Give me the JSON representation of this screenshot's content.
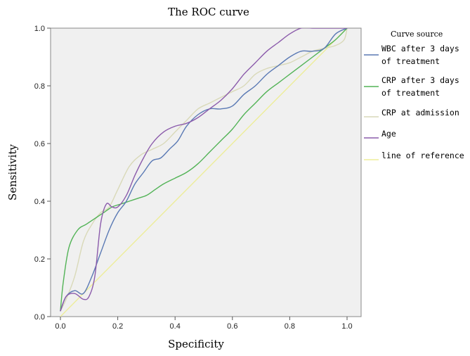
{
  "chart_data": {
    "type": "line",
    "title": "The ROC curve",
    "xlabel": "Specificity",
    "ylabel": "Sensitivity",
    "xlim": [
      0.0,
      1.0
    ],
    "ylim": [
      0.0,
      1.0
    ],
    "grid": false,
    "legend_title": "Curve source",
    "legend_position": "right",
    "x_ticks": [
      "0.0",
      "0.2",
      "0.4",
      "0.6",
      "0.8",
      "1.0"
    ],
    "y_ticks": [
      "0.0",
      "0.2",
      "0.4",
      "0.6",
      "0.8",
      "1.0"
    ],
    "series": [
      {
        "name": "WBC after 3 days of treatment",
        "legend_lines": [
          "WBC after 3 days",
          "of treatment"
        ],
        "color": "#5a79b4",
        "x": [
          0.0,
          0.02,
          0.05,
          0.08,
          0.11,
          0.14,
          0.17,
          0.2,
          0.23,
          0.26,
          0.29,
          0.32,
          0.35,
          0.38,
          0.41,
          0.44,
          0.48,
          0.52,
          0.56,
          0.6,
          0.64,
          0.68,
          0.72,
          0.76,
          0.8,
          0.84,
          0.88,
          0.92,
          0.96,
          1.0
        ],
        "y": [
          0.02,
          0.07,
          0.09,
          0.08,
          0.14,
          0.22,
          0.3,
          0.36,
          0.4,
          0.46,
          0.5,
          0.54,
          0.55,
          0.58,
          0.61,
          0.66,
          0.7,
          0.72,
          0.72,
          0.73,
          0.77,
          0.8,
          0.84,
          0.87,
          0.9,
          0.92,
          0.92,
          0.93,
          0.98,
          1.0
        ]
      },
      {
        "name": "CRP after 3 days of treatment",
        "legend_lines": [
          "CRP after 3 days",
          "of treatment"
        ],
        "color": "#52b356",
        "x": [
          0.0,
          0.01,
          0.03,
          0.06,
          0.09,
          0.12,
          0.15,
          0.18,
          0.21,
          0.24,
          0.27,
          0.3,
          0.33,
          0.36,
          0.4,
          0.44,
          0.48,
          0.52,
          0.56,
          0.6,
          0.64,
          0.68,
          0.72,
          0.76,
          0.8,
          0.84,
          0.88,
          0.92,
          0.96,
          1.0
        ],
        "y": [
          0.02,
          0.12,
          0.24,
          0.3,
          0.32,
          0.34,
          0.36,
          0.38,
          0.39,
          0.4,
          0.41,
          0.42,
          0.44,
          0.46,
          0.48,
          0.5,
          0.53,
          0.57,
          0.61,
          0.65,
          0.7,
          0.74,
          0.78,
          0.81,
          0.84,
          0.87,
          0.9,
          0.93,
          0.96,
          1.0
        ]
      },
      {
        "name": "CRP at admission",
        "legend_lines": [
          "CRP at admission"
        ],
        "color": "#d9d9b8",
        "x": [
          0.0,
          0.02,
          0.05,
          0.08,
          0.11,
          0.14,
          0.17,
          0.2,
          0.24,
          0.28,
          0.32,
          0.36,
          0.4,
          0.44,
          0.48,
          0.52,
          0.56,
          0.6,
          0.64,
          0.68,
          0.72,
          0.76,
          0.8,
          0.84,
          0.88,
          0.92,
          0.96,
          0.99,
          1.0
        ],
        "y": [
          0.02,
          0.06,
          0.14,
          0.26,
          0.32,
          0.36,
          0.38,
          0.44,
          0.52,
          0.56,
          0.58,
          0.6,
          0.64,
          0.68,
          0.72,
          0.74,
          0.76,
          0.78,
          0.8,
          0.84,
          0.86,
          0.87,
          0.88,
          0.9,
          0.92,
          0.93,
          0.94,
          0.96,
          1.0
        ]
      },
      {
        "name": "Age",
        "legend_lines": [
          "Age"
        ],
        "color": "#8b5bab",
        "x": [
          0.0,
          0.02,
          0.05,
          0.08,
          0.1,
          0.12,
          0.14,
          0.16,
          0.18,
          0.2,
          0.23,
          0.26,
          0.29,
          0.32,
          0.36,
          0.4,
          0.44,
          0.48,
          0.52,
          0.56,
          0.6,
          0.64,
          0.68,
          0.72,
          0.76,
          0.8,
          0.84,
          0.88,
          0.92,
          0.96,
          1.0
        ],
        "y": [
          0.02,
          0.07,
          0.08,
          0.06,
          0.07,
          0.14,
          0.32,
          0.39,
          0.38,
          0.38,
          0.42,
          0.49,
          0.55,
          0.6,
          0.64,
          0.66,
          0.67,
          0.69,
          0.72,
          0.75,
          0.79,
          0.84,
          0.88,
          0.92,
          0.95,
          0.98,
          1.0,
          1.0,
          1.0,
          1.0,
          1.0
        ]
      },
      {
        "name": "line of reference",
        "legend_lines": [
          "line of reference"
        ],
        "color": "#eded9a",
        "x": [
          0.0,
          1.0
        ],
        "y": [
          0.0,
          1.0
        ]
      }
    ]
  }
}
